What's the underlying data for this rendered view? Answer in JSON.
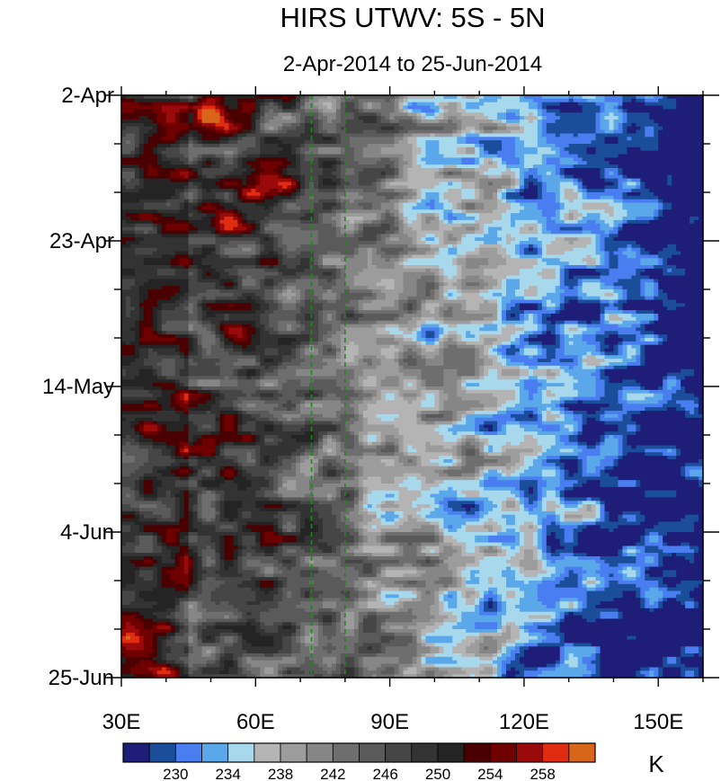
{
  "chart_data": {
    "type": "heatmap",
    "title": "HIRS UTWV: 5S - 5N",
    "subtitle": "2-Apr-2014 to 25-Jun-2014",
    "x_axis": {
      "range": [
        30,
        160
      ],
      "ticks": [
        30,
        60,
        90,
        120,
        150
      ],
      "tick_labels": [
        "30E",
        "60E",
        "90E",
        "120E",
        "150E"
      ],
      "minor_step": 10
    },
    "y_axis": {
      "range": [
        "2014-04-02",
        "2014-06-25"
      ],
      "tick_dates": [
        "2014-04-02",
        "2014-04-23",
        "2014-05-14",
        "2014-06-04",
        "2014-06-25"
      ],
      "tick_labels": [
        "2-Apr",
        "23-Apr",
        "14-May",
        "4-Jun",
        "25-Jun"
      ],
      "minor_step_days": 7,
      "direction": "top-to-bottom"
    },
    "reference_lines": [
      {
        "x": 72.5,
        "style": "dashed",
        "color": "#1a8a1a"
      },
      {
        "x": 80,
        "style": "dashed",
        "color": "#1a8a1a"
      }
    ],
    "colorbar": {
      "levels": [
        228,
        230,
        232,
        234,
        236,
        238,
        240,
        242,
        244,
        246,
        248,
        250,
        252,
        254,
        256,
        258,
        260
      ],
      "labels": [
        "230",
        "234",
        "238",
        "242",
        "246",
        "250",
        "254",
        "258"
      ],
      "colors": [
        "#1e1e78",
        "#1a4e9a",
        "#4a7ef0",
        "#5aa8ea",
        "#a8d8ec",
        "#b4b4b4",
        "#9c9c9c",
        "#868686",
        "#6e6e6e",
        "#5a5a5a",
        "#464646",
        "#333333",
        "#242424",
        "#4a0000",
        "#6e0000",
        "#9a0a0a",
        "#e02c10",
        "#d8661a"
      ],
      "unit": "K"
    },
    "field_description": {
      "western_band": "dark/warm values (246-258 K) along 30E-50E",
      "central_east": "moist/cool values (230-240 K) east of 80E"
    }
  }
}
